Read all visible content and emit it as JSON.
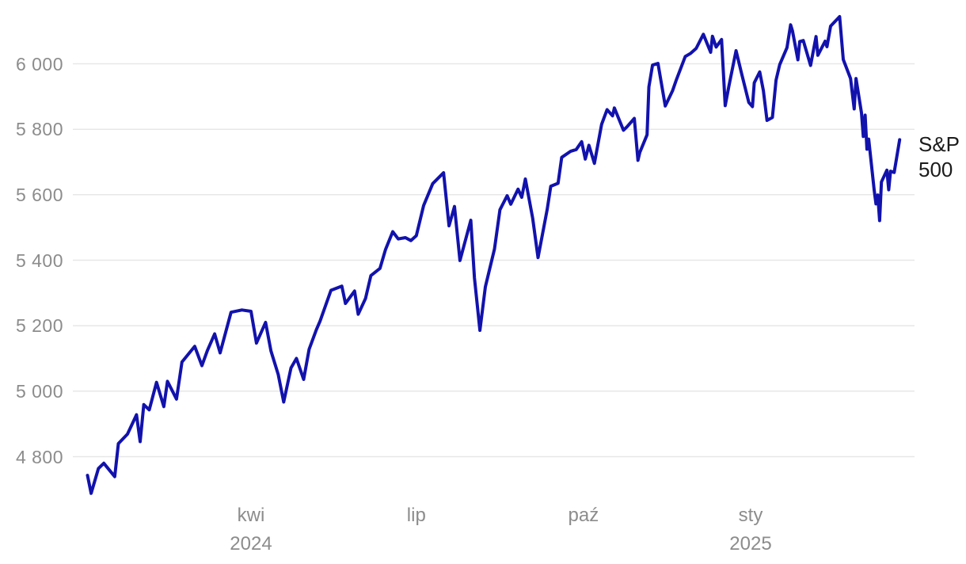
{
  "styles": {
    "background": "#ffffff",
    "line_color": "#1212ad",
    "grid_color": "#e7e7e7",
    "axis_label_color": "#8c8c8c",
    "series_label_color": "#1b1b1b"
  },
  "chart_data": {
    "type": "line",
    "title": "",
    "xlabel": "",
    "ylabel": "",
    "grid": true,
    "legend_position": "end-of-line-right",
    "ylim": [
      4650,
      6180
    ],
    "y_ticks": [
      {
        "value": 4800,
        "label": "4 800"
      },
      {
        "value": 5000,
        "label": "5 000"
      },
      {
        "value": 5200,
        "label": "5 200"
      },
      {
        "value": 5400,
        "label": "5 400"
      },
      {
        "value": 5600,
        "label": "5 600"
      },
      {
        "value": 5800,
        "label": "5 800"
      },
      {
        "value": 6000,
        "label": "6 000"
      }
    ],
    "x_ticks": [
      {
        "label": "kwi",
        "year": "2024",
        "date": "2024-04-01"
      },
      {
        "label": "lip",
        "year": "",
        "date": "2024-07-01"
      },
      {
        "label": "paź",
        "year": "",
        "date": "2024-10-01"
      },
      {
        "label": "sty",
        "year": "2025",
        "date": "2025-01-01"
      }
    ],
    "series": [
      {
        "name": "S&P 500",
        "color": "#1212ad",
        "points": [
          [
            "2024-01-02",
            4743
          ],
          [
            "2024-01-04",
            4688
          ],
          [
            "2024-01-08",
            4764
          ],
          [
            "2024-01-11",
            4780
          ],
          [
            "2024-01-17",
            4739
          ],
          [
            "2024-01-19",
            4840
          ],
          [
            "2024-01-24",
            4869
          ],
          [
            "2024-01-29",
            4928
          ],
          [
            "2024-01-31",
            4846
          ],
          [
            "2024-02-02",
            4959
          ],
          [
            "2024-02-05",
            4943
          ],
          [
            "2024-02-09",
            5027
          ],
          [
            "2024-02-13",
            4953
          ],
          [
            "2024-02-15",
            5030
          ],
          [
            "2024-02-20",
            4976
          ],
          [
            "2024-02-23",
            5089
          ],
          [
            "2024-03-01",
            5137
          ],
          [
            "2024-03-05",
            5078
          ],
          [
            "2024-03-08",
            5124
          ],
          [
            "2024-03-12",
            5175
          ],
          [
            "2024-03-15",
            5117
          ],
          [
            "2024-03-21",
            5241
          ],
          [
            "2024-03-27",
            5248
          ],
          [
            "2024-04-01",
            5244
          ],
          [
            "2024-04-04",
            5147
          ],
          [
            "2024-04-09",
            5210
          ],
          [
            "2024-04-12",
            5123
          ],
          [
            "2024-04-16",
            5051
          ],
          [
            "2024-04-19",
            4967
          ],
          [
            "2024-04-23",
            5071
          ],
          [
            "2024-04-26",
            5100
          ],
          [
            "2024-04-30",
            5036
          ],
          [
            "2024-05-03",
            5128
          ],
          [
            "2024-05-07",
            5188
          ],
          [
            "2024-05-09",
            5214
          ],
          [
            "2024-05-15",
            5308
          ],
          [
            "2024-05-21",
            5321
          ],
          [
            "2024-05-23",
            5268
          ],
          [
            "2024-05-28",
            5306
          ],
          [
            "2024-05-30",
            5235
          ],
          [
            "2024-06-03",
            5283
          ],
          [
            "2024-06-06",
            5353
          ],
          [
            "2024-06-11",
            5375
          ],
          [
            "2024-06-14",
            5432
          ],
          [
            "2024-06-18",
            5487
          ],
          [
            "2024-06-21",
            5465
          ],
          [
            "2024-06-25",
            5469
          ],
          [
            "2024-06-28",
            5460
          ],
          [
            "2024-07-01",
            5475
          ],
          [
            "2024-07-05",
            5567
          ],
          [
            "2024-07-10",
            5634
          ],
          [
            "2024-07-16",
            5667
          ],
          [
            "2024-07-19",
            5505
          ],
          [
            "2024-07-22",
            5564
          ],
          [
            "2024-07-25",
            5399
          ],
          [
            "2024-07-31",
            5522
          ],
          [
            "2024-08-02",
            5346
          ],
          [
            "2024-08-05",
            5186
          ],
          [
            "2024-08-08",
            5319
          ],
          [
            "2024-08-13",
            5434
          ],
          [
            "2024-08-16",
            5554
          ],
          [
            "2024-08-20",
            5597
          ],
          [
            "2024-08-22",
            5571
          ],
          [
            "2024-08-26",
            5617
          ],
          [
            "2024-08-28",
            5592
          ],
          [
            "2024-08-30",
            5648
          ],
          [
            "2024-09-03",
            5529
          ],
          [
            "2024-09-06",
            5408
          ],
          [
            "2024-09-11",
            5554
          ],
          [
            "2024-09-13",
            5626
          ],
          [
            "2024-09-17",
            5635
          ],
          [
            "2024-09-19",
            5714
          ],
          [
            "2024-09-24",
            5733
          ],
          [
            "2024-09-27",
            5738
          ],
          [
            "2024-09-30",
            5762
          ],
          [
            "2024-10-02",
            5709
          ],
          [
            "2024-10-04",
            5751
          ],
          [
            "2024-10-07",
            5696
          ],
          [
            "2024-10-11",
            5815
          ],
          [
            "2024-10-14",
            5860
          ],
          [
            "2024-10-17",
            5841
          ],
          [
            "2024-10-18",
            5865
          ],
          [
            "2024-10-23",
            5797
          ],
          [
            "2024-10-25",
            5808
          ],
          [
            "2024-10-29",
            5833
          ],
          [
            "2024-10-31",
            5705
          ],
          [
            "2024-11-01",
            5729
          ],
          [
            "2024-11-05",
            5783
          ],
          [
            "2024-11-06",
            5929
          ],
          [
            "2024-11-08",
            5996
          ],
          [
            "2024-11-11",
            6001
          ],
          [
            "2024-11-15",
            5871
          ],
          [
            "2024-11-19",
            5917
          ],
          [
            "2024-11-21",
            5949
          ],
          [
            "2024-11-26",
            6022
          ],
          [
            "2024-11-29",
            6032
          ],
          [
            "2024-12-02",
            6047
          ],
          [
            "2024-12-06",
            6090
          ],
          [
            "2024-12-10",
            6035
          ],
          [
            "2024-12-11",
            6084
          ],
          [
            "2024-12-13",
            6051
          ],
          [
            "2024-12-16",
            6074
          ],
          [
            "2024-12-18",
            5872
          ],
          [
            "2024-12-20",
            5931
          ],
          [
            "2024-12-24",
            6040
          ],
          [
            "2024-12-27",
            5971
          ],
          [
            "2024-12-31",
            5882
          ],
          [
            "2025-01-02",
            5869
          ],
          [
            "2025-01-03",
            5942
          ],
          [
            "2025-01-06",
            5975
          ],
          [
            "2025-01-08",
            5918
          ],
          [
            "2025-01-10",
            5827
          ],
          [
            "2025-01-13",
            5836
          ],
          [
            "2025-01-15",
            5950
          ],
          [
            "2025-01-17",
            5997
          ],
          [
            "2025-01-21",
            6049
          ],
          [
            "2025-01-23",
            6119
          ],
          [
            "2025-01-24",
            6101
          ],
          [
            "2025-01-27",
            6012
          ],
          [
            "2025-01-28",
            6068
          ],
          [
            "2025-01-30",
            6071
          ],
          [
            "2025-02-03",
            5995
          ],
          [
            "2025-02-06",
            6083
          ],
          [
            "2025-02-07",
            6026
          ],
          [
            "2025-02-11",
            6069
          ],
          [
            "2025-02-12",
            6052
          ],
          [
            "2025-02-14",
            6115
          ],
          [
            "2025-02-19",
            6144
          ],
          [
            "2025-02-21",
            6013
          ],
          [
            "2025-02-25",
            5955
          ],
          [
            "2025-02-27",
            5862
          ],
          [
            "2025-02-28",
            5955
          ],
          [
            "2025-03-03",
            5850
          ],
          [
            "2025-03-04",
            5778
          ],
          [
            "2025-03-05",
            5843
          ],
          [
            "2025-03-06",
            5739
          ],
          [
            "2025-03-07",
            5770
          ],
          [
            "2025-03-10",
            5615
          ],
          [
            "2025-03-11",
            5572
          ],
          [
            "2025-03-12",
            5599
          ],
          [
            "2025-03-13",
            5521
          ],
          [
            "2025-03-14",
            5639
          ],
          [
            "2025-03-17",
            5675
          ],
          [
            "2025-03-18",
            5615
          ],
          [
            "2025-03-19",
            5672
          ],
          [
            "2025-03-21",
            5668
          ],
          [
            "2025-03-24",
            5768
          ]
        ]
      }
    ]
  }
}
